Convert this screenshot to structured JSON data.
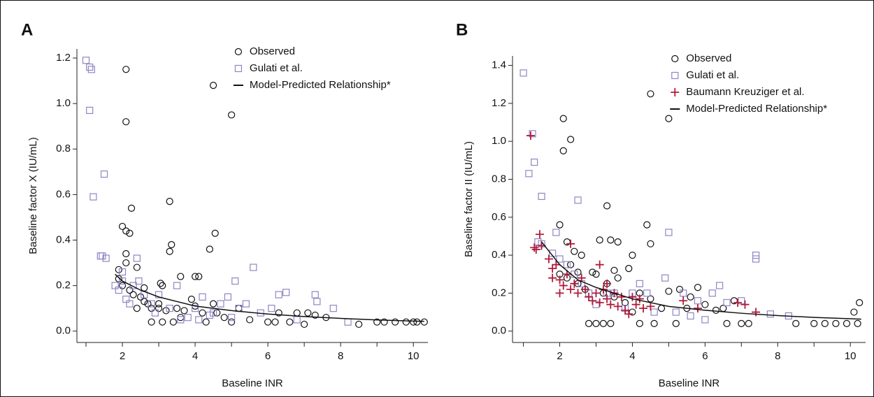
{
  "chart_data": [
    {
      "type": "scatter",
      "panel": "A",
      "xlabel": "Baseline INR",
      "ylabel": "Baseline factor X (IU/mL)",
      "xlim": [
        0.75,
        10.4
      ],
      "ylim": [
        -0.05,
        1.24
      ],
      "xticks": [
        2,
        4,
        6,
        8,
        10
      ],
      "xminor": [
        1,
        3,
        5,
        7,
        9
      ],
      "yticks": [
        {
          "value": 0,
          "label": "0.0"
        },
        0.2,
        0.4,
        0.6,
        0.8,
        {
          "value": 1,
          "label": "1.0"
        },
        1.2
      ],
      "legend": "top",
      "series": [
        {
          "name": "Observed",
          "color": "#111111",
          "marker": "circle",
          "x": [
            2.1,
            2.1,
            4.5,
            5.0,
            2.0,
            2.1,
            2.2,
            2.25,
            3.3,
            3.3,
            3.35,
            4.4,
            4.55,
            2.1,
            2.1,
            2.4,
            1.9,
            3.6,
            4.0,
            4.1,
            3.05,
            3.1,
            2.6,
            1.9,
            2.0,
            2.2,
            2.3,
            2.5,
            2.7,
            2.8,
            3.0,
            3.2,
            3.5,
            3.7,
            3.9,
            4.2,
            4.6,
            4.8,
            5.2,
            5.5,
            6.0,
            6.2,
            6.6,
            6.8,
            7.0,
            7.1,
            7.3,
            7.6,
            8.5,
            9.0,
            9.2,
            9.5,
            9.8,
            10.0,
            10.1,
            10.3,
            2.8,
            3.1,
            3.4,
            3.6,
            4.3,
            5.0,
            2.4,
            2.6,
            3.0,
            4.0,
            4.5,
            6.3
          ],
          "values": [
            1.15,
            0.92,
            1.08,
            0.95,
            0.46,
            0.44,
            0.43,
            0.54,
            0.57,
            0.35,
            0.38,
            0.36,
            0.43,
            0.34,
            0.3,
            0.28,
            0.27,
            0.24,
            0.24,
            0.24,
            0.21,
            0.2,
            0.19,
            0.23,
            0.2,
            0.18,
            0.16,
            0.15,
            0.12,
            0.1,
            0.1,
            0.09,
            0.1,
            0.09,
            0.14,
            0.08,
            0.08,
            0.06,
            0.1,
            0.05,
            0.04,
            0.04,
            0.04,
            0.08,
            0.03,
            0.08,
            0.07,
            0.06,
            0.03,
            0.04,
            0.04,
            0.04,
            0.04,
            0.04,
            0.04,
            0.04,
            0.04,
            0.04,
            0.04,
            0.06,
            0.04,
            0.04,
            0.1,
            0.13,
            0.12,
            0.11,
            0.12,
            0.08
          ]
        },
        {
          "name": "Gulati et al.",
          "color": "#8f86c4",
          "marker": "square",
          "x": [
            1.0,
            1.1,
            1.15,
            1.1,
            1.5,
            1.2,
            1.4,
            1.45,
            1.55,
            1.8,
            1.9,
            2.0,
            2.0,
            2.1,
            2.2,
            2.3,
            2.4,
            2.45,
            2.6,
            2.8,
            2.9,
            3.0,
            3.3,
            3.5,
            3.6,
            3.8,
            4.0,
            4.1,
            4.2,
            4.5,
            4.7,
            4.9,
            5.1,
            5.2,
            5.4,
            5.6,
            5.8,
            6.1,
            6.3,
            6.5,
            6.8,
            7.3,
            7.35,
            7.8,
            8.2,
            5.0,
            4.4
          ],
          "values": [
            1.19,
            1.16,
            1.15,
            0.97,
            0.69,
            0.59,
            0.33,
            0.33,
            0.32,
            0.2,
            0.18,
            0.26,
            0.22,
            0.14,
            0.12,
            0.2,
            0.32,
            0.22,
            0.16,
            0.12,
            0.08,
            0.16,
            0.1,
            0.2,
            0.05,
            0.06,
            0.1,
            0.05,
            0.15,
            0.08,
            0.12,
            0.15,
            0.22,
            0.1,
            0.12,
            0.28,
            0.08,
            0.1,
            0.16,
            0.17,
            0.05,
            0.16,
            0.13,
            0.1,
            0.04,
            0.06,
            0.07
          ]
        },
        {
          "name": "Model-Predicted Relationship*",
          "color": "#111111",
          "marker": "line",
          "x": [
            1.8,
            2,
            2.5,
            3,
            4,
            5,
            6,
            7,
            8,
            9,
            10,
            10.3
          ],
          "values": [
            0.25,
            0.22,
            0.18,
            0.15,
            0.11,
            0.09,
            0.075,
            0.064,
            0.056,
            0.049,
            0.044,
            0.043
          ]
        }
      ]
    },
    {
      "type": "scatter",
      "panel": "B",
      "xlabel": "Baseline INR",
      "ylabel": "Baseline factor II (IU/mL)",
      "xlim": [
        0.7,
        10.42
      ],
      "ylim": [
        -0.06,
        1.45
      ],
      "xticks": [
        2,
        4,
        6,
        8,
        10
      ],
      "xminor": [
        1,
        3,
        5,
        7,
        9
      ],
      "yticks": [
        {
          "value": 0,
          "label": "0.0"
        },
        0.2,
        0.4,
        0.6,
        0.8,
        {
          "value": 1,
          "label": "1.0"
        },
        1.2,
        1.4
      ],
      "legend": "top",
      "series": [
        {
          "name": "Observed",
          "color": "#111111",
          "marker": "circle",
          "x": [
            2.1,
            2.3,
            2.1,
            4.5,
            5.0,
            3.3,
            4.4,
            4.5,
            2.0,
            3.1,
            3.4,
            3.6,
            4.0,
            2.2,
            2.4,
            2.6,
            3.5,
            3.9,
            2.0,
            2.2,
            2.5,
            2.7,
            3.0,
            3.2,
            3.5,
            3.8,
            4.2,
            4.5,
            4.8,
            5.0,
            5.3,
            5.6,
            5.8,
            6.0,
            6.3,
            6.5,
            6.8,
            7.0,
            7.2,
            6.6,
            2.8,
            3.0,
            3.2,
            3.4,
            4.2,
            4.6,
            5.2,
            8.5,
            9.0,
            9.3,
            9.6,
            9.9,
            10.1,
            10.2,
            10.25,
            2.3,
            2.5,
            2.9,
            3.3,
            3.6,
            5.5,
            4.0
          ],
          "values": [
            1.12,
            1.01,
            0.95,
            1.25,
            1.12,
            0.66,
            0.56,
            0.46,
            0.56,
            0.48,
            0.48,
            0.47,
            0.4,
            0.47,
            0.42,
            0.4,
            0.32,
            0.33,
            0.3,
            0.28,
            0.25,
            0.22,
            0.3,
            0.2,
            0.18,
            0.15,
            0.2,
            0.17,
            0.12,
            0.21,
            0.22,
            0.18,
            0.23,
            0.14,
            0.11,
            0.12,
            0.16,
            0.04,
            0.04,
            0.04,
            0.04,
            0.04,
            0.04,
            0.04,
            0.04,
            0.04,
            0.04,
            0.04,
            0.04,
            0.04,
            0.04,
            0.04,
            0.1,
            0.04,
            0.15,
            0.35,
            0.31,
            0.31,
            0.25,
            0.28,
            0.12,
            0.1
          ]
        },
        {
          "name": "Gulati et al.",
          "color": "#8f86c4",
          "marker": "square",
          "x": [
            1.0,
            1.25,
            1.3,
            1.15,
            1.5,
            2.5,
            1.4,
            1.5,
            1.8,
            1.9,
            2.0,
            2.2,
            2.4,
            2.6,
            2.8,
            3.0,
            3.3,
            3.5,
            3.8,
            4.0,
            4.2,
            4.4,
            4.6,
            4.9,
            5.0,
            5.2,
            5.4,
            5.6,
            6.0,
            6.2,
            6.4,
            6.6,
            7.0,
            7.4,
            7.4,
            7.8,
            8.3,
            5.8
          ],
          "values": [
            1.36,
            1.04,
            0.89,
            0.83,
            0.71,
            0.69,
            0.47,
            0.46,
            0.41,
            0.52,
            0.38,
            0.35,
            0.3,
            0.25,
            0.2,
            0.14,
            0.2,
            0.2,
            0.12,
            0.2,
            0.25,
            0.2,
            0.1,
            0.28,
            0.52,
            0.1,
            0.2,
            0.08,
            0.06,
            0.2,
            0.24,
            0.15,
            0.16,
            0.4,
            0.38,
            0.09,
            0.08,
            0.16
          ]
        },
        {
          "name": "Baumann Kreuziger et al.",
          "color": "#b01c3c",
          "marker": "plus",
          "x": [
            1.2,
            1.3,
            1.35,
            1.45,
            1.5,
            1.7,
            1.8,
            1.8,
            1.9,
            2.0,
            2.1,
            2.2,
            2.3,
            2.3,
            2.4,
            2.5,
            2.6,
            2.7,
            2.8,
            2.9,
            3.0,
            3.1,
            3.1,
            3.2,
            3.3,
            3.4,
            3.5,
            3.6,
            3.7,
            3.8,
            3.9,
            4.0,
            4.1,
            4.2,
            4.3,
            4.5,
            5.4,
            5.8,
            6.9,
            7.1,
            7.4,
            3.3,
            2.0
          ],
          "values": [
            1.03,
            0.44,
            0.43,
            0.51,
            0.45,
            0.38,
            0.33,
            0.28,
            0.35,
            0.27,
            0.24,
            0.3,
            0.46,
            0.22,
            0.25,
            0.2,
            0.28,
            0.22,
            0.18,
            0.16,
            0.2,
            0.35,
            0.15,
            0.22,
            0.17,
            0.14,
            0.2,
            0.13,
            0.18,
            0.11,
            0.09,
            0.18,
            0.14,
            0.17,
            0.12,
            0.13,
            0.16,
            0.12,
            0.15,
            0.14,
            0.1,
            0.25,
            0.2
          ]
        },
        {
          "name": "Model-Predicted Relationship*",
          "color": "#111111",
          "marker": "line",
          "x": [
            1.5,
            2,
            2.5,
            3,
            4,
            5,
            6,
            7,
            8,
            9,
            10,
            10.3
          ],
          "values": [
            0.47,
            0.35,
            0.27,
            0.23,
            0.17,
            0.13,
            0.11,
            0.094,
            0.082,
            0.072,
            0.065,
            0.063
          ]
        }
      ]
    }
  ]
}
